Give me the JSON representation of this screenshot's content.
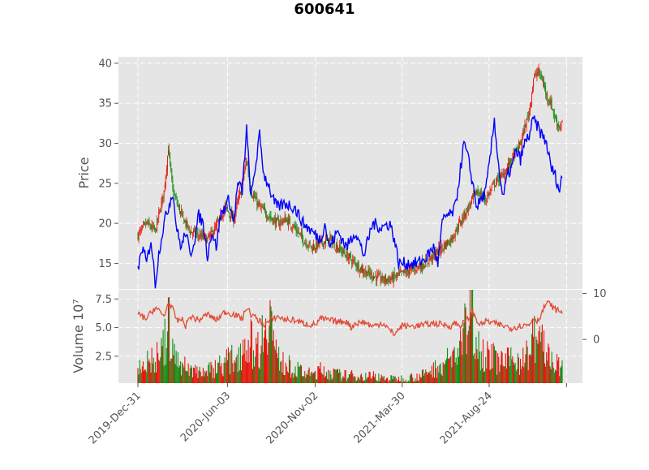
{
  "chart_data": {
    "type": "candlestick",
    "title": "600641",
    "colors": {
      "up": "#e6140a",
      "down": "#138c13",
      "blue_line": "#0000ff",
      "volume_line": "#e24a33",
      "panel_bg": "#e5e5e5",
      "tick_text": "#555555"
    },
    "x_axis": {
      "tick_labels": [
        "2019-Dec-31",
        "2020-Jun-03",
        "2020-Nov-02",
        "2021-Mar-30",
        "2021-Aug-24"
      ],
      "tick_index": [
        0,
        103,
        204,
        304,
        404
      ],
      "n_points": 489
    },
    "price_panel": {
      "ylabel": "Price",
      "ylim": [
        11.8,
        40.8
      ],
      "yticks": [
        15,
        20,
        25,
        30,
        35,
        40
      ],
      "grid": true,
      "series": [
        {
          "kind": "candles",
          "anchors": [
            [
              0,
              18.5
            ],
            [
              10,
              20
            ],
            [
              20,
              19
            ],
            [
              30,
              24
            ],
            [
              35,
              29.5
            ],
            [
              40,
              24
            ],
            [
              50,
              21
            ],
            [
              60,
              19
            ],
            [
              70,
              18.5
            ],
            [
              80,
              18
            ],
            [
              90,
              19.5
            ],
            [
              100,
              22
            ],
            [
              110,
              20.5
            ],
            [
              120,
              25
            ],
            [
              125,
              28
            ],
            [
              130,
              24
            ],
            [
              140,
              22
            ],
            [
              150,
              21
            ],
            [
              160,
              20
            ],
            [
              170,
              20.5
            ],
            [
              180,
              19.5
            ],
            [
              190,
              18
            ],
            [
              200,
              17
            ],
            [
              210,
              17.5
            ],
            [
              220,
              18
            ],
            [
              230,
              17
            ],
            [
              240,
              16
            ],
            [
              250,
              15
            ],
            [
              260,
              14
            ],
            [
              270,
              13.5
            ],
            [
              280,
              13
            ],
            [
              290,
              13
            ],
            [
              300,
              13.5
            ],
            [
              310,
              14
            ],
            [
              320,
              14.5
            ],
            [
              330,
              15
            ],
            [
              340,
              16
            ],
            [
              350,
              17
            ],
            [
              360,
              18
            ],
            [
              370,
              20
            ],
            [
              380,
              22
            ],
            [
              390,
              24
            ],
            [
              400,
              23
            ],
            [
              410,
              25
            ],
            [
              420,
              26
            ],
            [
              430,
              28
            ],
            [
              440,
              30
            ],
            [
              450,
              34
            ],
            [
              455,
              38
            ],
            [
              460,
              39
            ],
            [
              465,
              38
            ],
            [
              470,
              36
            ],
            [
              475,
              35
            ],
            [
              480,
              33
            ],
            [
              485,
              32
            ],
            [
              488,
              32.5
            ]
          ]
        },
        {
          "kind": "line",
          "anchors": [
            [
              0,
              14
            ],
            [
              5,
              17
            ],
            [
              10,
              15
            ],
            [
              15,
              18
            ],
            [
              20,
              12.5
            ],
            [
              25,
              17
            ],
            [
              30,
              20
            ],
            [
              35,
              22
            ],
            [
              40,
              24
            ],
            [
              45,
              19
            ],
            [
              50,
              17
            ],
            [
              55,
              19
            ],
            [
              60,
              16
            ],
            [
              65,
              18
            ],
            [
              70,
              21
            ],
            [
              75,
              20
            ],
            [
              80,
              16
            ],
            [
              85,
              19
            ],
            [
              90,
              17
            ],
            [
              95,
              21
            ],
            [
              100,
              22
            ],
            [
              105,
              23
            ],
            [
              110,
              20
            ],
            [
              115,
              25
            ],
            [
              120,
              24
            ],
            [
              125,
              31.8
            ],
            [
              130,
              23
            ],
            [
              135,
              27
            ],
            [
              140,
              31
            ],
            [
              145,
              26
            ],
            [
              150,
              25
            ],
            [
              155,
              23
            ],
            [
              160,
              22
            ],
            [
              170,
              22.5
            ],
            [
              180,
              22
            ],
            [
              190,
              20
            ],
            [
              200,
              19
            ],
            [
              210,
              18
            ],
            [
              215,
              20
            ],
            [
              220,
              17
            ],
            [
              230,
              19
            ],
            [
              240,
              17
            ],
            [
              250,
              19
            ],
            [
              260,
              16
            ],
            [
              270,
              20
            ],
            [
              280,
              19.5
            ],
            [
              290,
              20
            ],
            [
              295,
              18
            ],
            [
              300,
              15
            ],
            [
              310,
              15
            ],
            [
              320,
              15
            ],
            [
              330,
              15.5
            ],
            [
              340,
              17
            ],
            [
              345,
              15
            ],
            [
              350,
              20
            ],
            [
              355,
              21
            ],
            [
              360,
              21
            ],
            [
              365,
              22
            ],
            [
              370,
              26
            ],
            [
              375,
              30
            ],
            [
              380,
              28
            ],
            [
              385,
              25
            ],
            [
              390,
              22
            ],
            [
              395,
              23
            ],
            [
              400,
              24
            ],
            [
              405,
              28
            ],
            [
              410,
              33
            ],
            [
              415,
              27
            ],
            [
              420,
              23
            ],
            [
              425,
              26
            ],
            [
              430,
              27
            ],
            [
              435,
              29
            ],
            [
              440,
              28
            ],
            [
              445,
              30
            ],
            [
              450,
              31
            ],
            [
              455,
              33
            ],
            [
              460,
              32
            ],
            [
              465,
              31
            ],
            [
              470,
              30
            ],
            [
              475,
              27
            ],
            [
              480,
              26
            ],
            [
              485,
              24
            ],
            [
              488,
              26
            ]
          ]
        }
      ]
    },
    "volume_panel": {
      "ylabel": "Volume  10⁷",
      "ylim": [
        0.15,
        8.3
      ],
      "yticks": [
        2.5,
        5.0,
        7.5
      ],
      "ytick_labels": [
        "2.5",
        "5.0",
        "7.5"
      ],
      "right_ylim": [
        -9.5,
        10.8
      ],
      "right_yticks": [
        0,
        10
      ],
      "grid": true,
      "volume_anchors": [
        [
          0,
          2
        ],
        [
          10,
          2.2
        ],
        [
          20,
          2.5
        ],
        [
          30,
          3.5
        ],
        [
          35,
          6
        ],
        [
          40,
          3
        ],
        [
          50,
          2
        ],
        [
          60,
          1.5
        ],
        [
          70,
          1.4
        ],
        [
          80,
          1.3
        ],
        [
          90,
          1.8
        ],
        [
          100,
          2.2
        ],
        [
          110,
          2.5
        ],
        [
          120,
          3.5
        ],
        [
          125,
          4.5
        ],
        [
          130,
          4
        ],
        [
          140,
          3.5
        ],
        [
          150,
          7.8
        ],
        [
          160,
          2.5
        ],
        [
          170,
          2
        ],
        [
          180,
          1.5
        ],
        [
          190,
          1.2
        ],
        [
          200,
          1
        ],
        [
          210,
          1.4
        ],
        [
          220,
          1.2
        ],
        [
          230,
          1
        ],
        [
          240,
          0.9
        ],
        [
          250,
          0.9
        ],
        [
          260,
          0.8
        ],
        [
          270,
          0.9
        ],
        [
          280,
          0.7
        ],
        [
          290,
          0.6
        ],
        [
          300,
          0.6
        ],
        [
          310,
          0.7
        ],
        [
          320,
          0.8
        ],
        [
          330,
          1
        ],
        [
          340,
          1.5
        ],
        [
          350,
          2
        ],
        [
          360,
          2.5
        ],
        [
          370,
          3.5
        ],
        [
          380,
          6
        ],
        [
          385,
          8
        ],
        [
          390,
          4
        ],
        [
          400,
          3
        ],
        [
          410,
          2.5
        ],
        [
          420,
          2.2
        ],
        [
          430,
          2.3
        ],
        [
          440,
          2.5
        ],
        [
          450,
          3
        ],
        [
          455,
          4.5
        ],
        [
          460,
          5
        ],
        [
          470,
          3
        ],
        [
          480,
          2
        ],
        [
          488,
          1.5
        ]
      ],
      "secondary_anchors": [
        [
          0,
          5.5
        ],
        [
          10,
          4.5
        ],
        [
          15,
          5.8
        ],
        [
          20,
          7
        ],
        [
          25,
          6
        ],
        [
          30,
          5
        ],
        [
          35,
          8
        ],
        [
          40,
          6.5
        ],
        [
          45,
          4
        ],
        [
          50,
          4.5
        ],
        [
          55,
          3
        ],
        [
          60,
          5
        ],
        [
          70,
          4.2
        ],
        [
          80,
          5.5
        ],
        [
          90,
          4.2
        ],
        [
          100,
          6
        ],
        [
          110,
          5.5
        ],
        [
          120,
          4.5
        ],
        [
          125,
          7
        ],
        [
          130,
          5.5
        ],
        [
          140,
          4
        ],
        [
          145,
          3.2
        ],
        [
          150,
          3.8
        ],
        [
          160,
          5
        ],
        [
          170,
          4.3
        ],
        [
          180,
          4.2
        ],
        [
          190,
          3.5
        ],
        [
          200,
          3.2
        ],
        [
          205,
          3.4
        ],
        [
          210,
          4.5
        ],
        [
          220,
          4.2
        ],
        [
          230,
          3.8
        ],
        [
          240,
          4
        ],
        [
          245,
          2.6
        ],
        [
          250,
          3.5
        ],
        [
          260,
          3.8
        ],
        [
          270,
          2.8
        ],
        [
          280,
          3.6
        ],
        [
          285,
          3.1
        ],
        [
          290,
          1.8
        ],
        [
          295,
          1.2
        ],
        [
          300,
          2.2
        ],
        [
          305,
          3.2
        ],
        [
          310,
          2.8
        ],
        [
          320,
          3
        ],
        [
          330,
          3.2
        ],
        [
          340,
          3.5
        ],
        [
          350,
          3.3
        ],
        [
          360,
          2.9
        ],
        [
          365,
          3.7
        ],
        [
          370,
          2.9
        ],
        [
          380,
          4.5
        ],
        [
          385,
          6
        ],
        [
          390,
          4
        ],
        [
          395,
          3.2
        ],
        [
          400,
          4
        ],
        [
          410,
          3.5
        ],
        [
          420,
          3
        ],
        [
          430,
          2.5
        ],
        [
          440,
          3
        ],
        [
          450,
          3.2
        ],
        [
          455,
          4.8
        ],
        [
          460,
          4
        ],
        [
          465,
          6
        ],
        [
          470,
          8
        ],
        [
          475,
          7.5
        ],
        [
          480,
          6.5
        ],
        [
          485,
          6.2
        ],
        [
          488,
          6
        ]
      ]
    }
  }
}
